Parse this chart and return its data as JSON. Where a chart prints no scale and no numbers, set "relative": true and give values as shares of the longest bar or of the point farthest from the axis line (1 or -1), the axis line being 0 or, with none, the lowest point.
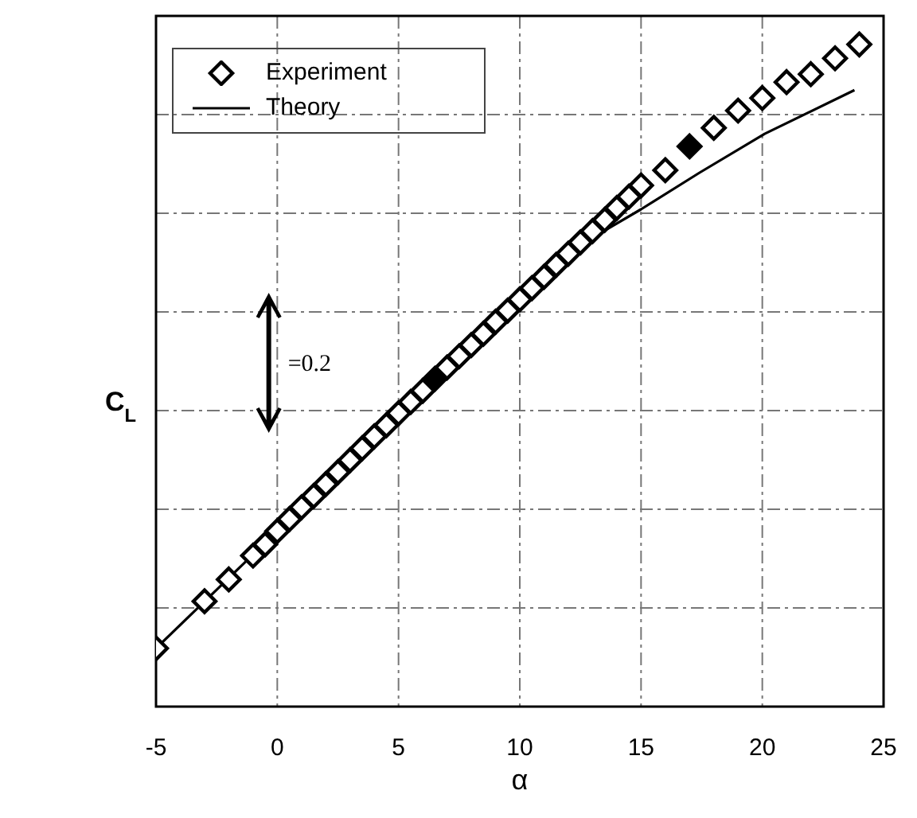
{
  "chart_data": {
    "type": "scatter",
    "xlabel": "α",
    "ylabel": "C$_{L}$",
    "relative": true,
    "xlim": [
      -5,
      25
    ],
    "xticks": [
      -5,
      0,
      5,
      10,
      15,
      20,
      25
    ],
    "grid": true,
    "legend": "top left",
    "annotations": [
      "=0.2"
    ],
    "series": [
      {
        "name": "Experiment",
        "marker": "diamond",
        "color": "#000000",
        "x": [
          -5,
          -3,
          -2,
          -1,
          -0.5,
          0,
          0.5,
          1,
          1.5,
          2,
          2.5,
          3,
          3.5,
          4,
          4.5,
          5,
          5.5,
          6,
          7,
          7.5,
          8,
          8.5,
          9,
          9.5,
          10,
          10.5,
          11,
          11.5,
          12,
          12.5,
          13,
          13.5,
          14,
          14.5,
          15,
          16,
          18,
          19,
          20,
          21,
          22,
          23,
          24
        ],
        "values": [
          0.088,
          0.159,
          0.192,
          0.228,
          0.245,
          0.265,
          0.283,
          0.301,
          0.318,
          0.336,
          0.354,
          0.372,
          0.39,
          0.408,
          0.425,
          0.443,
          0.46,
          0.477,
          0.512,
          0.529,
          0.546,
          0.563,
          0.581,
          0.598,
          0.615,
          0.632,
          0.649,
          0.667,
          0.684,
          0.701,
          0.718,
          0.735,
          0.753,
          0.77,
          0.787,
          0.81,
          0.874,
          0.9,
          0.919,
          0.943,
          0.955,
          0.979,
          1.0
        ]
      },
      {
        "marker": "diamond",
        "color": "#000000",
        "x": [
          6.5,
          17
        ],
        "values": [
          0.495,
          0.846
        ]
      },
      {
        "name": "Theory",
        "type": "line",
        "color": "#000000",
        "x": [
          -5,
          0,
          5,
          10,
          12.8,
          15,
          17.4,
          20.1,
          23.8
        ],
        "values": [
          0.088,
          0.265,
          0.443,
          0.615,
          0.704,
          0.751,
          0.806,
          0.865,
          0.931
        ]
      }
    ]
  }
}
